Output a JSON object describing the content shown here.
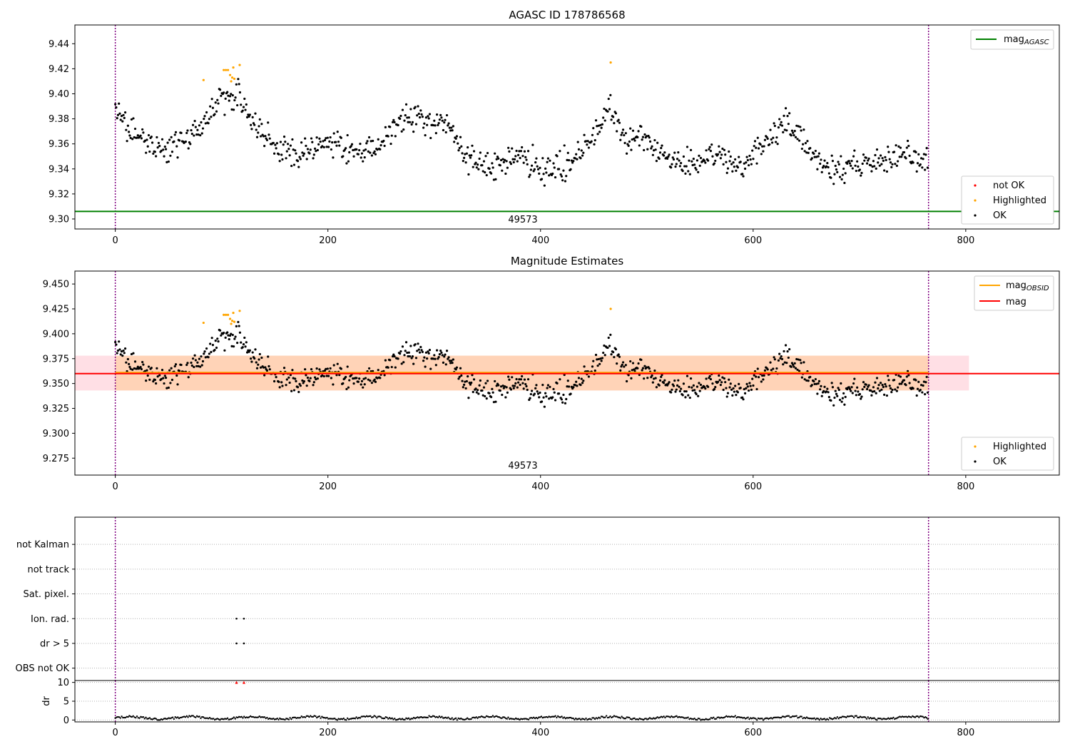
{
  "chart_data": [
    {
      "type": "scatter",
      "title": "AGASC ID 178786568",
      "xlim": [
        -38,
        888
      ],
      "ylim": [
        9.292,
        9.455
      ],
      "xticks": [
        0,
        200,
        400,
        600,
        800
      ],
      "yticks": [
        9.3,
        9.32,
        9.34,
        9.36,
        9.38,
        9.4,
        9.42,
        9.44
      ],
      "ytick_labels": [
        "9.30",
        "9.32",
        "9.34",
        "9.36",
        "9.38",
        "9.40",
        "9.42",
        "9.44"
      ],
      "obsid_label": "49573",
      "obsid_boundaries": [
        0,
        765
      ],
      "reference_line": {
        "name": "mag",
        "sub": "AGASC",
        "value": 9.306,
        "color": "#008000"
      },
      "series_legend": [
        {
          "name": "not OK",
          "color": "#ff0000"
        },
        {
          "name": "Highlighted",
          "color": "#ffa500"
        },
        {
          "name": "OK",
          "color": "#000000"
        }
      ],
      "line_legend_position": "upper right",
      "series_legend_position": "lower right"
    },
    {
      "type": "scatter",
      "title": "Magnitude Estimates",
      "xlim": [
        -38,
        888
      ],
      "ylim": [
        9.258,
        9.463
      ],
      "xticks": [
        0,
        200,
        400,
        600,
        800
      ],
      "yticks": [
        9.275,
        9.3,
        9.325,
        9.35,
        9.375,
        9.4,
        9.425,
        9.45
      ],
      "ytick_labels": [
        "9.275",
        "9.300",
        "9.325",
        "9.350",
        "9.375",
        "9.400",
        "9.425",
        "9.450"
      ],
      "obsid_label": "49573",
      "obsid_boundaries": [
        0,
        765
      ],
      "mag_line": {
        "name": "mag",
        "value": 9.36,
        "color": "#ff0000"
      },
      "mag_obsid": {
        "name": "mag",
        "sub": "OBSID",
        "value": 9.361,
        "color": "#ffa500"
      },
      "mag_band": {
        "low": 9.343,
        "high": 9.378,
        "xmin": -38,
        "xmax": 803
      },
      "series_legend": [
        {
          "name": "Highlighted",
          "color": "#ffa500"
        },
        {
          "name": "OK",
          "color": "#000000"
        }
      ],
      "line_legend_position": "upper right",
      "series_legend_position": "lower right"
    },
    {
      "type": "scatter",
      "title": "",
      "xlim": [
        -38,
        888
      ],
      "categories": [
        "OBS not OK",
        "dr > 5",
        "Ion. rad.",
        "Sat. pixel.",
        "not track",
        "not Kalman"
      ],
      "flags": {
        "dr > 5": [
          114,
          121
        ],
        "Ion. rad.": [
          114,
          121
        ]
      },
      "obsid_boundaries": [
        0,
        765
      ]
    },
    {
      "type": "scatter",
      "title": "",
      "xlim": [
        -38,
        888
      ],
      "ylim": [
        -0.5,
        10.5
      ],
      "ylabel": "dr",
      "xticks": [
        0,
        200,
        400,
        600,
        800
      ],
      "yticks": [
        0,
        5,
        10
      ],
      "ytick_labels": [
        "0",
        "5",
        "10"
      ],
      "outliers": [
        {
          "x": 114,
          "y": 10
        },
        {
          "x": 121,
          "y": 10
        }
      ],
      "obsid_boundaries": [
        0,
        765
      ]
    }
  ]
}
